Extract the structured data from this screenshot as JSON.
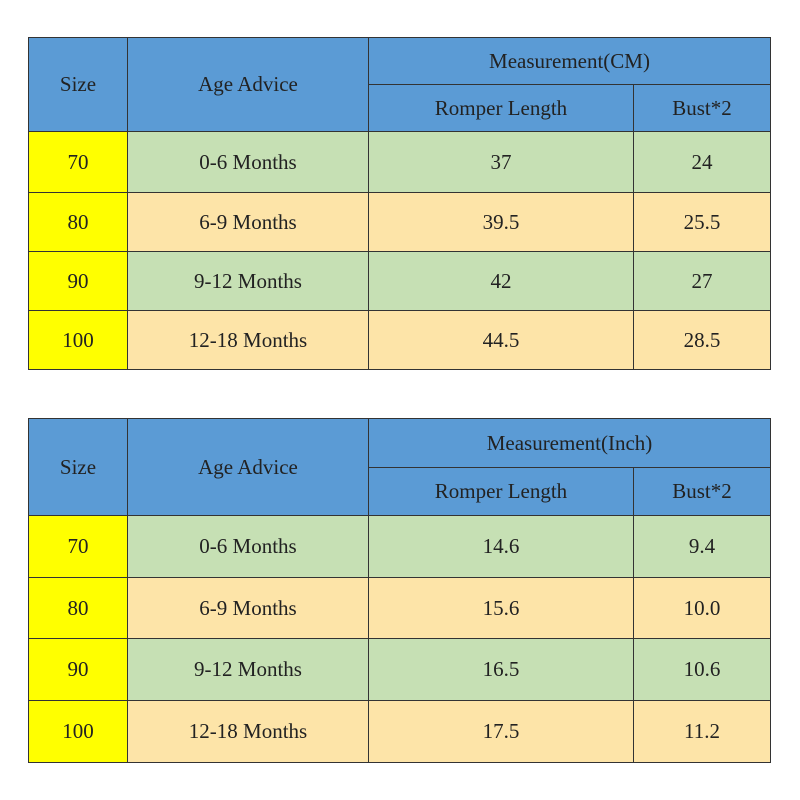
{
  "tables": [
    {
      "header": {
        "size": "Size",
        "age": "Age Advice",
        "measurement": "Measurement(CM)",
        "length": "Romper Length",
        "bust": "Bust*2"
      },
      "rows": [
        [
          "70",
          "0-6 Months",
          "37",
          "24"
        ],
        [
          "80",
          "6-9 Months",
          "39.5",
          "25.5"
        ],
        [
          "90",
          "9-12 Months",
          "42",
          "27"
        ],
        [
          "100",
          "12-18 Months",
          "44.5",
          "28.5"
        ]
      ]
    },
    {
      "header": {
        "size": "Size",
        "age": "Age Advice",
        "measurement": "Measurement(Inch)",
        "length": "Romper Length",
        "bust": "Bust*2"
      },
      "rows": [
        [
          "70",
          "0-6 Months",
          "14.6",
          "9.4"
        ],
        [
          "80",
          "6-9 Months",
          "15.6",
          "10.0"
        ],
        [
          "90",
          "9-12 Months",
          "16.5",
          "10.6"
        ],
        [
          "100",
          "12-18 Months",
          "17.5",
          "11.2"
        ]
      ]
    }
  ]
}
